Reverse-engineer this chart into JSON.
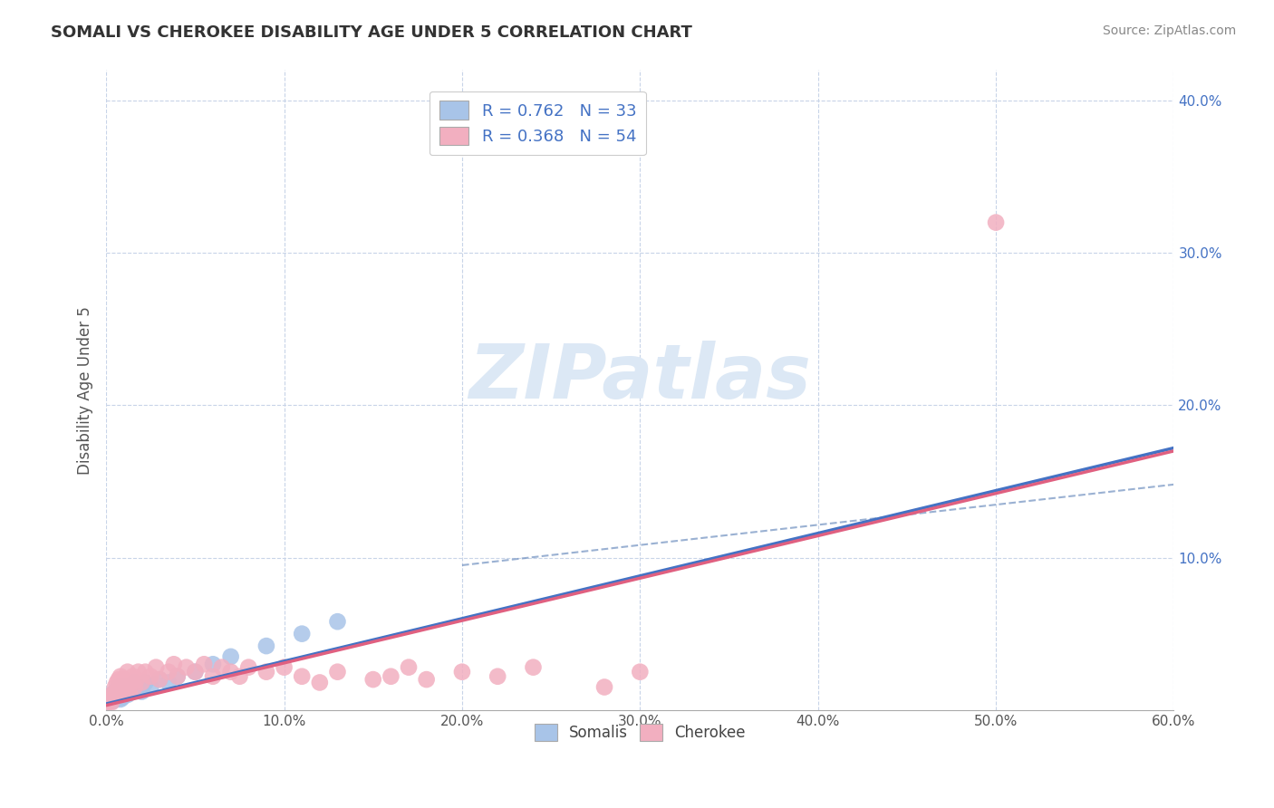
{
  "title": "SOMALI VS CHEROKEE DISABILITY AGE UNDER 5 CORRELATION CHART",
  "source": "Source: ZipAtlas.com",
  "ylabel": "Disability Age Under 5",
  "xlim": [
    0.0,
    0.6
  ],
  "ylim": [
    0.0,
    0.42
  ],
  "xticks": [
    0.0,
    0.1,
    0.2,
    0.3,
    0.4,
    0.5,
    0.6
  ],
  "xtick_labels": [
    "0.0%",
    "10.0%",
    "20.0%",
    "30.0%",
    "40.0%",
    "50.0%",
    "60.0%"
  ],
  "yticks": [
    0.1,
    0.2,
    0.3,
    0.4
  ],
  "ytick_labels": [
    "10.0%",
    "20.0%",
    "30.0%",
    "40.0%"
  ],
  "somali_R": 0.762,
  "somali_N": 33,
  "cherokee_R": 0.368,
  "cherokee_N": 54,
  "somali_color": "#a8c4e8",
  "cherokee_color": "#f2afc0",
  "somali_line_color": "#4472c4",
  "cherokee_line_color": "#e06080",
  "dashed_line_color": "#7090c0",
  "background_color": "#ffffff",
  "grid_color": "#c8d4e8",
  "title_color": "#333333",
  "source_color": "#888888",
  "ytick_color": "#4472c4",
  "xtick_color": "#555555",
  "watermark_text": "ZIPatlas",
  "watermark_color": "#dce8f5",
  "somali_points_x": [
    0.001,
    0.002,
    0.003,
    0.004,
    0.005,
    0.005,
    0.006,
    0.007,
    0.007,
    0.008,
    0.008,
    0.009,
    0.009,
    0.01,
    0.01,
    0.011,
    0.012,
    0.013,
    0.015,
    0.016,
    0.018,
    0.02,
    0.022,
    0.025,
    0.03,
    0.035,
    0.04,
    0.05,
    0.06,
    0.07,
    0.09,
    0.11,
    0.13
  ],
  "somali_points_y": [
    0.005,
    0.007,
    0.01,
    0.006,
    0.008,
    0.012,
    0.01,
    0.008,
    0.015,
    0.01,
    0.007,
    0.012,
    0.008,
    0.01,
    0.015,
    0.012,
    0.01,
    0.015,
    0.012,
    0.018,
    0.015,
    0.012,
    0.018,
    0.015,
    0.02,
    0.018,
    0.022,
    0.025,
    0.03,
    0.035,
    0.042,
    0.05,
    0.058
  ],
  "cherokee_points_x": [
    0.001,
    0.002,
    0.003,
    0.003,
    0.004,
    0.005,
    0.005,
    0.006,
    0.006,
    0.007,
    0.008,
    0.008,
    0.009,
    0.01,
    0.01,
    0.011,
    0.012,
    0.013,
    0.014,
    0.015,
    0.016,
    0.017,
    0.018,
    0.02,
    0.022,
    0.025,
    0.028,
    0.03,
    0.035,
    0.038,
    0.04,
    0.045,
    0.05,
    0.055,
    0.06,
    0.065,
    0.07,
    0.075,
    0.08,
    0.09,
    0.1,
    0.11,
    0.12,
    0.13,
    0.15,
    0.16,
    0.17,
    0.18,
    0.2,
    0.22,
    0.24,
    0.28,
    0.3,
    0.5
  ],
  "cherokee_points_y": [
    0.005,
    0.008,
    0.005,
    0.01,
    0.008,
    0.01,
    0.015,
    0.012,
    0.018,
    0.02,
    0.015,
    0.022,
    0.01,
    0.015,
    0.02,
    0.018,
    0.025,
    0.012,
    0.018,
    0.022,
    0.015,
    0.02,
    0.025,
    0.018,
    0.025,
    0.022,
    0.028,
    0.02,
    0.025,
    0.03,
    0.022,
    0.028,
    0.025,
    0.03,
    0.022,
    0.028,
    0.025,
    0.022,
    0.028,
    0.025,
    0.028,
    0.022,
    0.018,
    0.025,
    0.02,
    0.022,
    0.028,
    0.02,
    0.025,
    0.022,
    0.028,
    0.015,
    0.025,
    0.32
  ],
  "somali_line_x": [
    0.0,
    0.6
  ],
  "somali_line_y": [
    0.004,
    0.172
  ],
  "cherokee_line_x": [
    0.0,
    0.6
  ],
  "cherokee_line_y": [
    0.003,
    0.17
  ],
  "dashed_line_x": [
    0.2,
    0.6
  ],
  "dashed_line_y": [
    0.095,
    0.148
  ]
}
